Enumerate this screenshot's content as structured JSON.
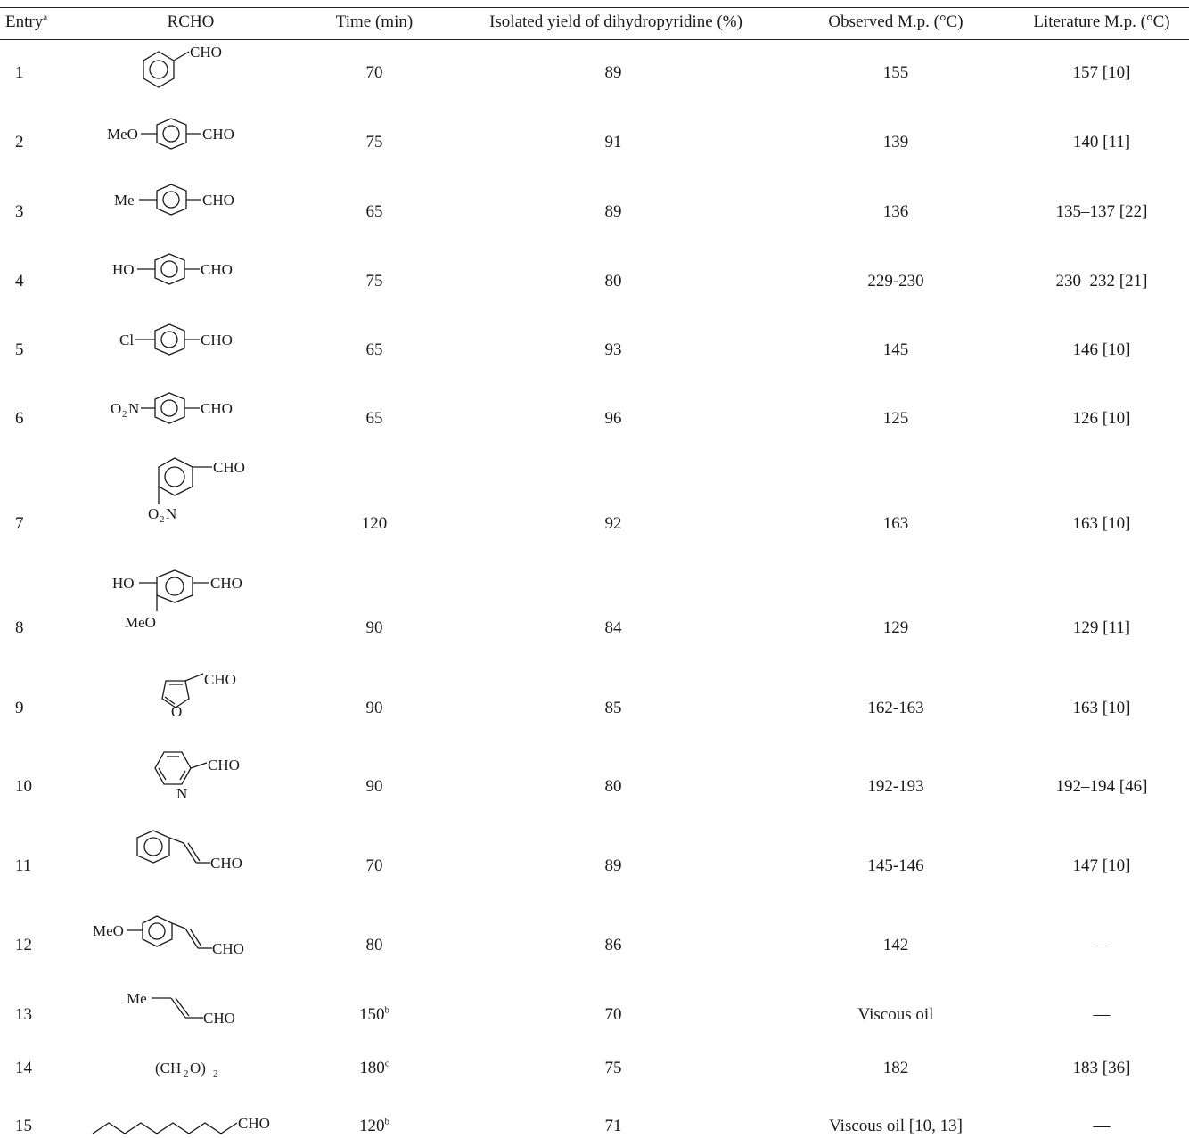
{
  "table": {
    "headers": {
      "entry": "Entry",
      "entry_sup": "a",
      "rcho": "RCHO",
      "time": "Time (min)",
      "yield": "Isolated yield of dihydropyridine (%)",
      "observed_mp": "Observed M.p. (°C)",
      "literature_mp": "Literature M.p. (°C)"
    },
    "rows": [
      {
        "entry": "1",
        "time": "70",
        "time_sup": "",
        "yield": "89",
        "observed_mp": "155",
        "literature_mp": "157 [10]"
      },
      {
        "entry": "2",
        "time": "75",
        "time_sup": "",
        "yield": "91",
        "observed_mp": "139",
        "literature_mp": "140 [11]"
      },
      {
        "entry": "3",
        "time": "65",
        "time_sup": "",
        "yield": "89",
        "observed_mp": "136",
        "literature_mp": "135–137 [22]"
      },
      {
        "entry": "4",
        "time": "75",
        "time_sup": "",
        "yield": "80",
        "observed_mp": "229-230",
        "literature_mp": "230–232 [21]"
      },
      {
        "entry": "5",
        "time": "65",
        "time_sup": "",
        "yield": "93",
        "observed_mp": "145",
        "literature_mp": "146 [10]"
      },
      {
        "entry": "6",
        "time": "65",
        "time_sup": "",
        "yield": "96",
        "observed_mp": "125",
        "literature_mp": "126 [10]"
      },
      {
        "entry": "7",
        "time": "120",
        "time_sup": "",
        "yield": "92",
        "observed_mp": "163",
        "literature_mp": "163 [10]"
      },
      {
        "entry": "8",
        "time": "90",
        "time_sup": "",
        "yield": "84",
        "observed_mp": "129",
        "literature_mp": "129 [11]"
      },
      {
        "entry": "9",
        "time": "90",
        "time_sup": "",
        "yield": "85",
        "observed_mp": "162-163",
        "literature_mp": "163 [10]"
      },
      {
        "entry": "10",
        "time": "90",
        "time_sup": "",
        "yield": "80",
        "observed_mp": "192-193",
        "literature_mp": "192–194 [46]"
      },
      {
        "entry": "11",
        "time": "70",
        "time_sup": "",
        "yield": "89",
        "observed_mp": "145-146",
        "literature_mp": "147 [10]"
      },
      {
        "entry": "12",
        "time": "80",
        "time_sup": "",
        "yield": "86",
        "observed_mp": "142",
        "literature_mp": "—"
      },
      {
        "entry": "13",
        "time": "150",
        "time_sup": "b",
        "yield": "70",
        "observed_mp": "Viscous oil",
        "literature_mp": "—"
      },
      {
        "entry": "14",
        "time": "180",
        "time_sup": "c",
        "yield": "75",
        "observed_mp": "182",
        "literature_mp": "183 [36]"
      },
      {
        "entry": "15",
        "time": "120",
        "time_sup": "b",
        "yield": "71",
        "observed_mp": "Viscous oil [10, 13]",
        "literature_mp": "—"
      }
    ],
    "structure_labels": {
      "cho": "CHO",
      "meo": "MeO",
      "me": "Me",
      "ho": "HO",
      "cl": "Cl",
      "o": "O",
      "n": "N",
      "o2n_o": "O",
      "o2n_sub": "2",
      "o2n_n": "N",
      "ch2o_open": "(CH",
      "ch2o_sub": "2",
      "ch2o_close": "O)",
      "ch2o_sub2": "2"
    }
  }
}
